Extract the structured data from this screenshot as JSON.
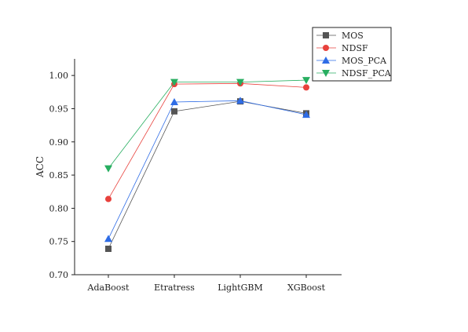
{
  "chart_data": {
    "type": "line",
    "title": "",
    "xlabel": "",
    "ylabel": "ACC",
    "ylim": [
      0.7,
      1.025
    ],
    "yticks": [
      "0.70",
      "0.75",
      "0.80",
      "0.85",
      "0.90",
      "0.95",
      "1.00"
    ],
    "categories": [
      "AdaBoost",
      "Etratress",
      "LightGBM",
      "XGBoost"
    ],
    "grid": false,
    "legend_position": "top-right",
    "series": [
      {
        "name": "MOS",
        "color": "#555555",
        "marker": "square",
        "values": [
          0.739,
          0.946,
          0.961,
          0.943
        ]
      },
      {
        "name": "NDSF",
        "color": "#e8413c",
        "marker": "circle",
        "values": [
          0.814,
          0.987,
          0.988,
          0.982
        ]
      },
      {
        "name": "MOS_PCA",
        "color": "#2e6ce6",
        "marker": "triangle-up",
        "values": [
          0.754,
          0.96,
          0.962,
          0.941
        ]
      },
      {
        "name": "NDSF_PCA",
        "color": "#27ae60",
        "marker": "triangle-down",
        "values": [
          0.86,
          0.99,
          0.99,
          0.993
        ]
      }
    ]
  }
}
